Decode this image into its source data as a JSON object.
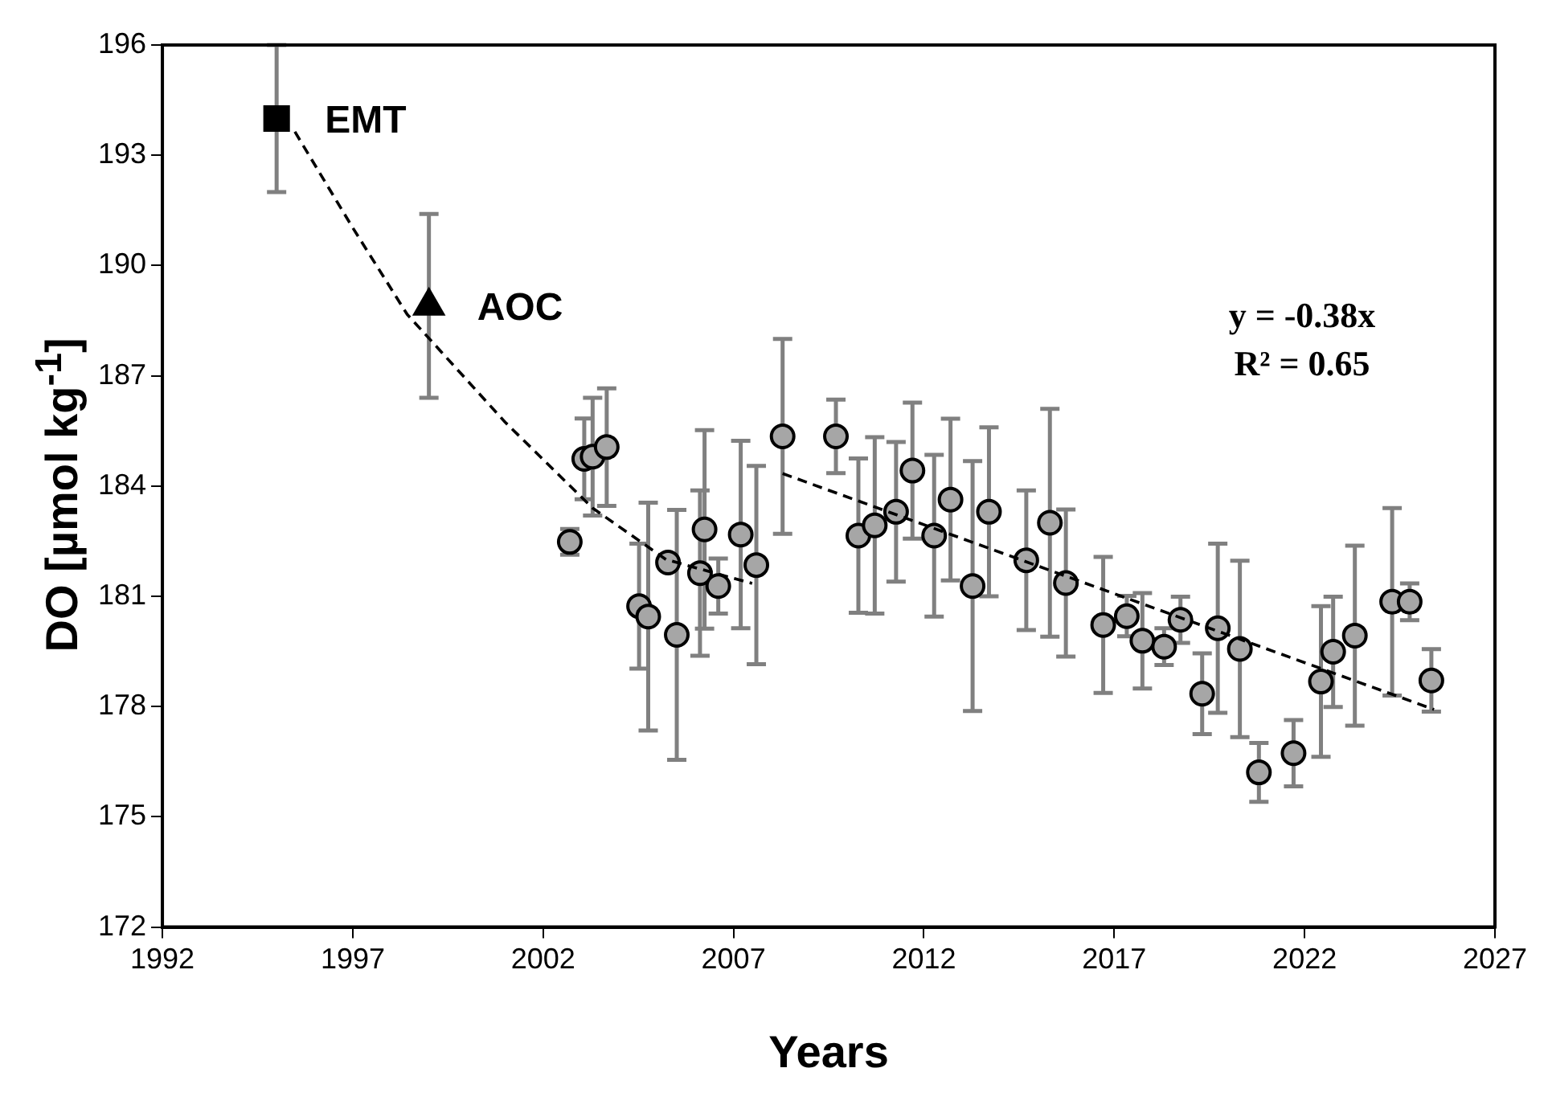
{
  "chart_data": {
    "type": "scatter",
    "xlabel": "Years",
    "ylabel": "DO [µmol kg$^{-1}$]",
    "xlim": [
      1992,
      2027
    ],
    "ylim": [
      172,
      196
    ],
    "xticks": [
      1992,
      1997,
      2002,
      2007,
      2012,
      2017,
      2022,
      2027
    ],
    "yticks": [
      172,
      175,
      178,
      181,
      184,
      187,
      190,
      193,
      196
    ],
    "grid": false,
    "legend": false,
    "annotations": [
      {
        "text": "EMT",
        "x": 1995,
        "y": 194
      },
      {
        "text": "AOC",
        "x": 1999,
        "y": 188.9
      },
      "y = -0.38x",
      "R² = 0.65"
    ],
    "series": [
      {
        "marker": "square",
        "color": "#000000",
        "x": [
          1995
        ],
        "values": [
          194
        ],
        "errors": [
          2
        ]
      },
      {
        "marker": "triangle",
        "color": "#000000",
        "x": [
          1999
        ],
        "values": [
          188.9
        ],
        "errors": [
          2.5
        ]
      },
      {
        "marker": "circle",
        "color": "#a6a6a6",
        "x": [
          2002.7,
          2003.08,
          2003.3,
          2003.67,
          2004.52,
          2004.76,
          2005.28,
          2005.51,
          2006.12,
          2006.24,
          2006.6,
          2007.19,
          2007.6,
          2008.29,
          2009.69,
          2010.28,
          2010.71,
          2011.27,
          2011.7,
          2012.27,
          2012.7,
          2013.28,
          2013.71,
          2014.69,
          2015.31,
          2015.73,
          2016.71,
          2017.33,
          2017.74,
          2018.31,
          2018.74,
          2019.31,
          2019.72,
          2020.3,
          2020.8,
          2021.71,
          2022.43,
          2022.75,
          2023.32,
          2024.3,
          2024.76,
          2025.33
        ],
        "values": [
          182.48,
          184.74,
          184.8,
          185.06,
          180.73,
          180.45,
          181.92,
          179.95,
          181.63,
          182.82,
          181.28,
          182.68,
          181.85,
          185.35,
          185.35,
          182.65,
          182.93,
          183.3,
          184.42,
          182.65,
          183.63,
          181.28,
          183.3,
          181.98,
          183.0,
          181.36,
          180.22,
          180.46,
          179.79,
          179.63,
          180.36,
          178.35,
          180.13,
          179.57,
          176.21,
          176.73,
          178.68,
          179.49,
          179.93,
          180.85,
          180.85,
          178.71
        ],
        "errors": [
          0.35,
          1.1,
          1.6,
          1.6,
          1.7,
          3.1,
          null,
          3.4,
          2.25,
          2.7,
          0.75,
          2.55,
          2.7,
          2.65,
          1.0,
          2.1,
          2.4,
          1.9,
          1.85,
          2.2,
          2.2,
          3.4,
          2.3,
          1.9,
          3.1,
          2.0,
          1.85,
          0.55,
          1.3,
          0.5,
          0.63,
          1.1,
          2.3,
          2.4,
          0.8,
          0.9,
          2.05,
          1.5,
          2.45,
          2.55,
          0.5,
          0.85
        ]
      },
      {
        "type": "line",
        "marker": "none",
        "line_style": "dashed",
        "color": "#000000",
        "x": [
          1995.48,
          1996.98,
          1998.43,
          2001.0,
          2003.3,
          2005.23,
          2007.49
        ],
        "values": [
          193.64,
          191.06,
          188.67,
          185.74,
          183.4,
          182.0,
          181.35
        ]
      },
      {
        "type": "line",
        "marker": "none",
        "line_style": "dashed",
        "color": "#000000",
        "x": [
          2008.29,
          2025.4
        ],
        "values": [
          184.34,
          177.92
        ]
      }
    ]
  }
}
